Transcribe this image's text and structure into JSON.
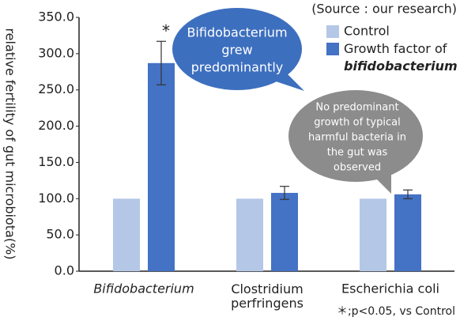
{
  "chart_data": {
    "type": "bar",
    "y_label": "relative fertility of gut microbiota(%)",
    "source": "(Source : our research)",
    "categories": [
      "Bifidobacterium",
      "Clostridium perfringens",
      "Escherichia coli"
    ],
    "series": [
      {
        "name": "Control",
        "color": "#b4c7e7",
        "values": [
          100,
          100,
          100
        ]
      },
      {
        "name": "Growth factor of bifidobacterium",
        "color": "#4472c4",
        "values": [
          287,
          108,
          106
        ],
        "errors": [
          30,
          9,
          6
        ]
      }
    ],
    "ylim": [
      0,
      350
    ],
    "yticks": [
      {
        "value": 0,
        "label": "0.0"
      },
      {
        "value": 50,
        "label": "50.0"
      },
      {
        "value": 100,
        "label": "100.0"
      },
      {
        "value": 150,
        "label": "150.0"
      },
      {
        "value": 200,
        "label": "200.0"
      },
      {
        "value": 250,
        "label": "250.0"
      },
      {
        "value": 300,
        "label": "300.0"
      },
      {
        "value": 350,
        "label": "350.0"
      }
    ],
    "significance_mark": "*",
    "footnote": "＊;p<0.05, vs Control",
    "bubble_blue": [
      "Bifidobacterium",
      "grew",
      "predominantly"
    ],
    "bubble_gray": [
      "No predominant",
      "growth of typical",
      "harmful bacteria in",
      "the gut was",
      "observed"
    ]
  }
}
